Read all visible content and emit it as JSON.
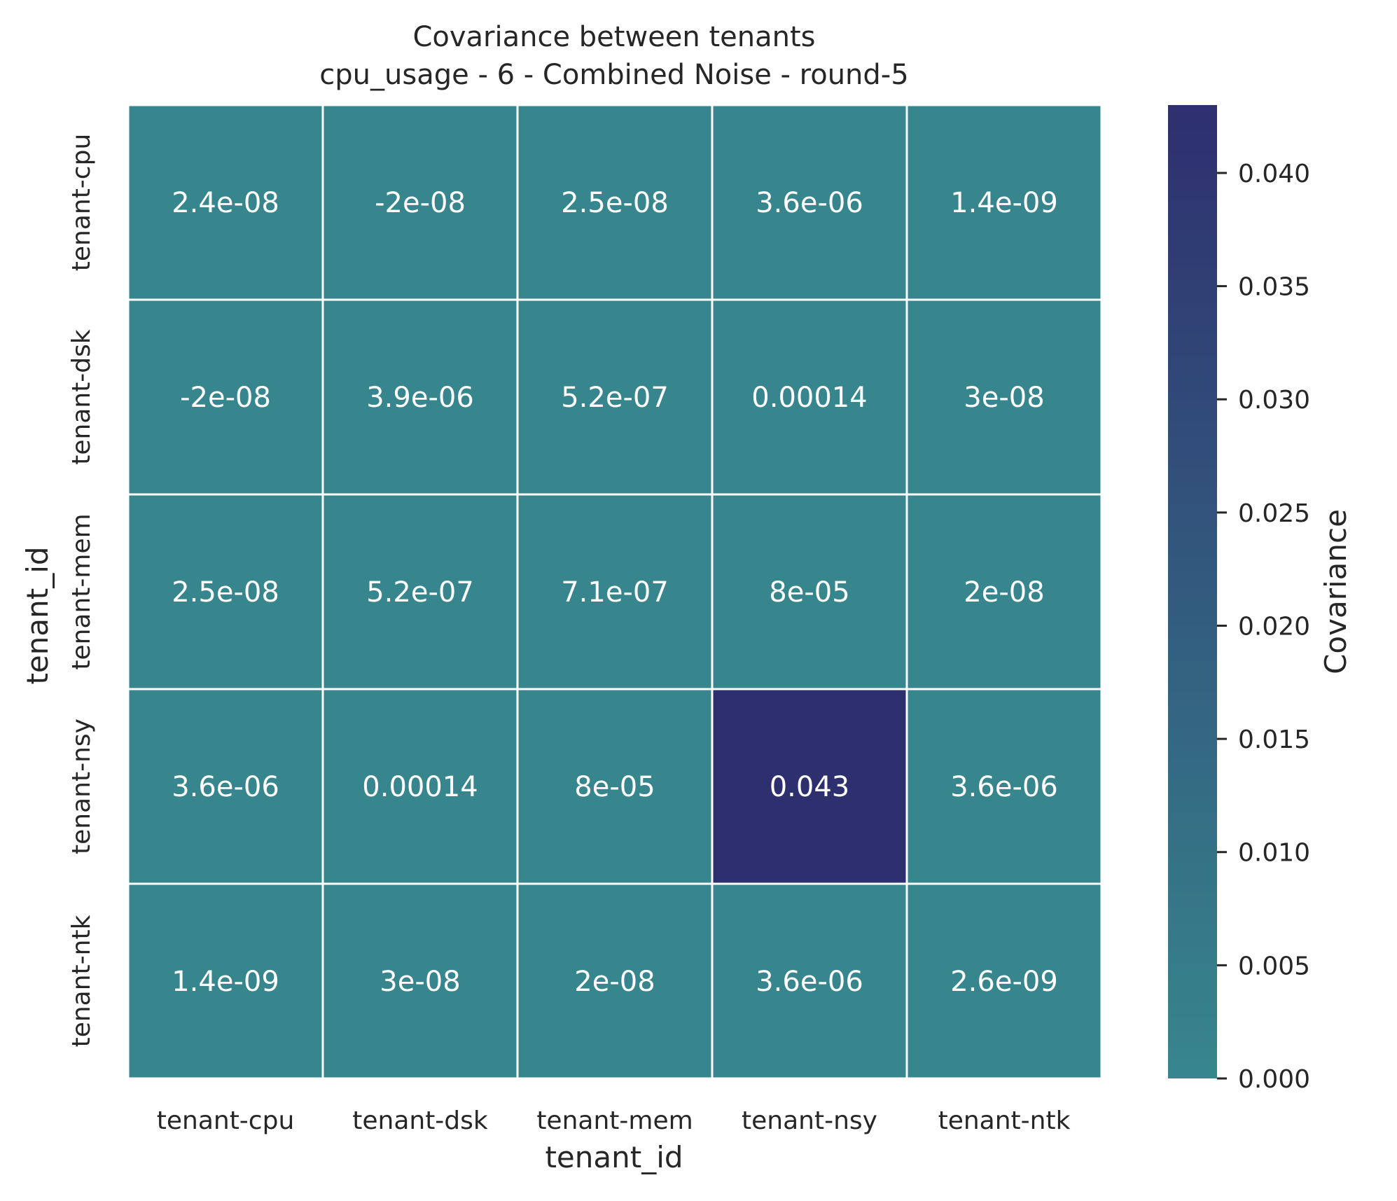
{
  "chart_data": {
    "type": "heatmap",
    "title": "Covariance between tenants",
    "subtitle": "cpu_usage - 6 - Combined Noise - round-5",
    "xlabel": "tenant_id",
    "ylabel": "tenant_id",
    "x_categories": [
      "tenant-cpu",
      "tenant-dsk",
      "tenant-mem",
      "tenant-nsy",
      "tenant-ntk"
    ],
    "y_categories": [
      "tenant-cpu",
      "tenant-dsk",
      "tenant-mem",
      "tenant-nsy",
      "tenant-ntk"
    ],
    "values": [
      [
        2.4e-08,
        -2e-08,
        2.5e-08,
        3.6e-06,
        1.4e-09
      ],
      [
        -2e-08,
        3.9e-06,
        5.2e-07,
        0.00014,
        3e-08
      ],
      [
        2.5e-08,
        5.2e-07,
        7.1e-07,
        8e-05,
        2e-08
      ],
      [
        3.6e-06,
        0.00014,
        8e-05,
        0.043,
        3.6e-06
      ],
      [
        1.4e-09,
        3e-08,
        2e-08,
        3.6e-06,
        2.6e-09
      ]
    ],
    "cell_labels": [
      [
        "2.4e-08",
        "-2e-08",
        "2.5e-08",
        "3.6e-06",
        "1.4e-09"
      ],
      [
        "-2e-08",
        "3.9e-06",
        "5.2e-07",
        "0.00014",
        "3e-08"
      ],
      [
        "2.5e-08",
        "5.2e-07",
        "7.1e-07",
        "8e-05",
        "2e-08"
      ],
      [
        "3.6e-06",
        "0.00014",
        "8e-05",
        "0.043",
        "3.6e-06"
      ],
      [
        "1.4e-09",
        "3e-08",
        "2e-08",
        "3.6e-06",
        "2.6e-09"
      ]
    ],
    "colorbar": {
      "label": "Covariance",
      "range": [
        0,
        0.043
      ],
      "ticks": [
        0.0,
        0.005,
        0.01,
        0.015,
        0.02,
        0.025,
        0.03,
        0.035,
        0.04
      ],
      "tick_labels": [
        "0.000",
        "0.005",
        "0.010",
        "0.015",
        "0.020",
        "0.025",
        "0.030",
        "0.035",
        "0.040"
      ],
      "colors": [
        "#37868d",
        "#2e2f6f"
      ]
    }
  }
}
